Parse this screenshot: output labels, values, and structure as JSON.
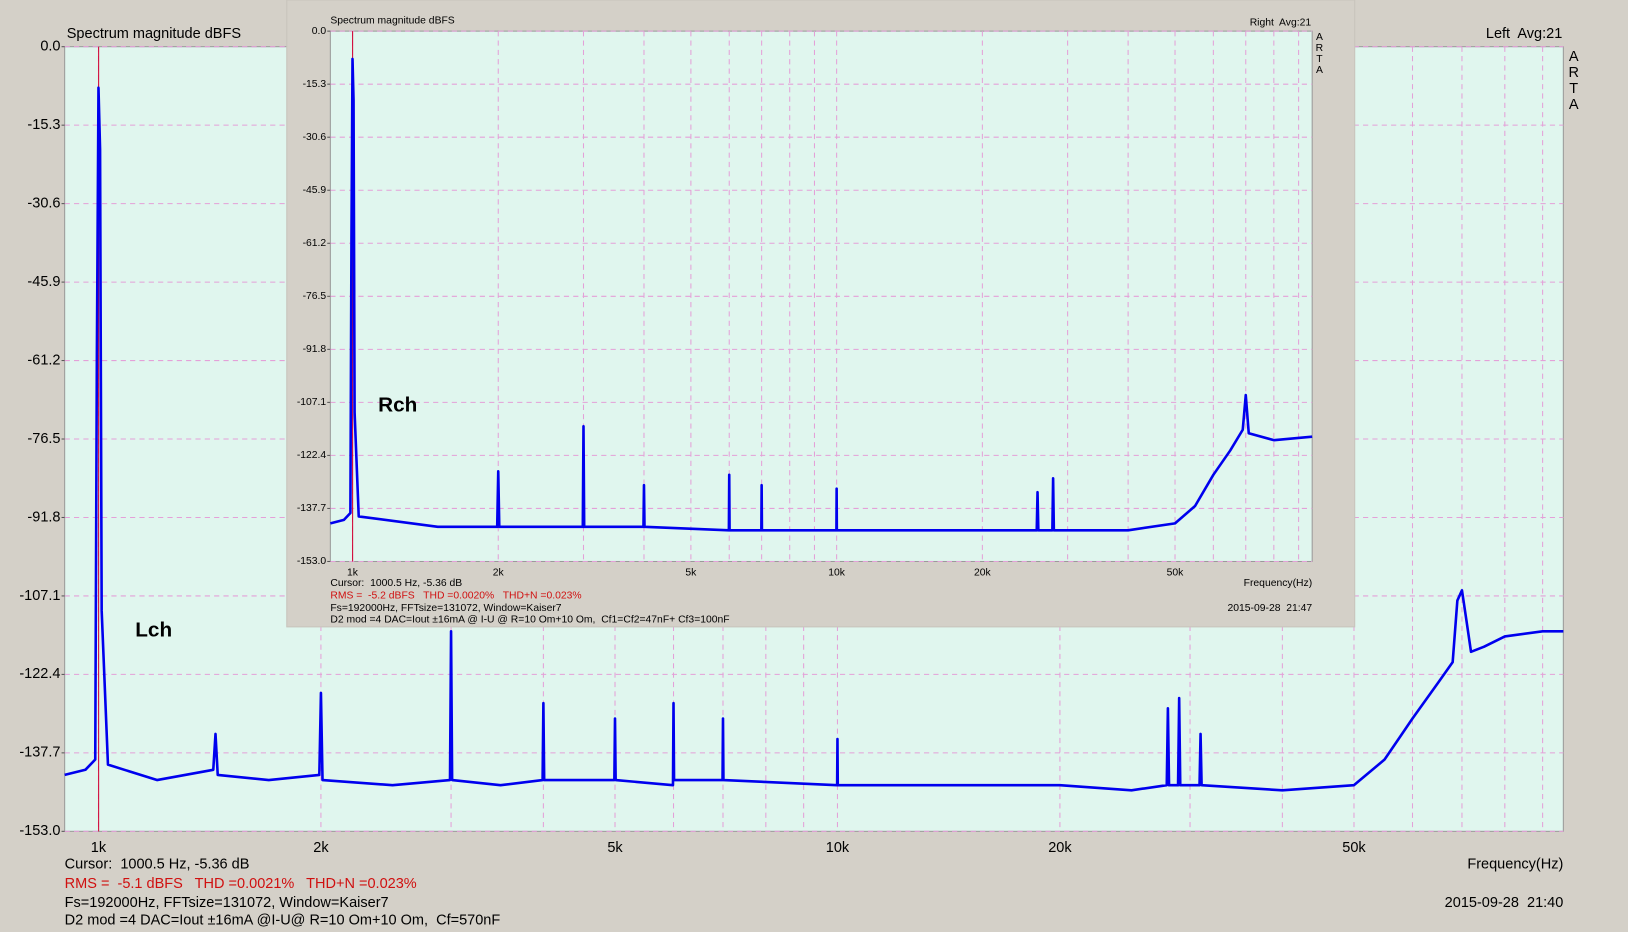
{
  "chart_data": [
    {
      "type": "line",
      "title": "Spectrum magnitude dBFS",
      "corner_label": "Left  Avg:21",
      "logo": "ARTA",
      "xlabel": "Frequency(Hz)",
      "cursor_text": "Cursor:  1000.5 Hz, -5.36 dB",
      "stats": "RMS =  -5.1 dBFS   THD =0.0021%   THD+N =0.023%",
      "fft": "Fs=192000Hz, FFTsize=131072, Window=Kaiser7",
      "setup": "D2 mod =4 DAC=Iout ±16mA @I-U@ R=10 Om+10 Om,  Cf=570nF",
      "date": "2015-09-28  21:40",
      "xscale": "log",
      "xlim": [
        900,
        96000
      ],
      "xticks": [
        {
          "value": 1000,
          "label": "1k"
        },
        {
          "value": 2000,
          "label": "2k"
        },
        {
          "value": 5000,
          "label": "5k"
        },
        {
          "value": 10000,
          "label": "10k"
        },
        {
          "value": 20000,
          "label": "20k"
        },
        {
          "value": 50000,
          "label": "50k"
        }
      ],
      "xminor": [
        3000,
        4000,
        6000,
        7000,
        8000,
        9000,
        30000,
        40000,
        60000,
        70000,
        80000,
        90000
      ],
      "ylim": [
        -153,
        0
      ],
      "yticks": [
        {
          "value": 0,
          "label": "0.0"
        },
        -15.3,
        -30.6,
        -45.9,
        -61.2,
        -76.5,
        -91.8,
        -107.1,
        -122.4,
        -137.7,
        {
          "value": -153,
          "label": "-153.0"
        }
      ],
      "grid": true,
      "cursor_x": 1000.5,
      "cursor_color": "#d00030",
      "x": [
        900,
        960,
        990,
        995,
        1000,
        1005,
        1010,
        1030,
        1200,
        1430,
        1440,
        1450,
        1700,
        1990,
        2000,
        2010,
        2500,
        2990,
        3000,
        3010,
        3500,
        3990,
        4000,
        4010,
        4990,
        5000,
        5010,
        5990,
        6000,
        6010,
        6990,
        7000,
        7010,
        9990,
        10000,
        10010,
        12000,
        15000,
        20000,
        25000,
        27900,
        28000,
        28100,
        28900,
        29000,
        29100,
        30900,
        31000,
        31100,
        40000,
        50000,
        55000,
        60000,
        65000,
        68000,
        69000,
        70000,
        71000,
        72000,
        75000,
        80000,
        90000,
        96000
      ],
      "series": [
        {
          "name": "Lch",
          "color": "#0000ee",
          "label_color": "#1010e0",
          "values": [
            -142,
            -141,
            -139,
            -60,
            -8,
            -20,
            -110,
            -140,
            -143,
            -141,
            -134,
            -142,
            -143,
            -142,
            -126,
            -143,
            -144,
            -143,
            -114,
            -143,
            -144,
            -143,
            -128,
            -143,
            -143,
            -131,
            -143,
            -144,
            -128,
            -143,
            -143,
            -131,
            -143,
            -144,
            -135,
            -144,
            -144,
            -144,
            -144,
            -145,
            -144,
            -129,
            -144,
            -144,
            -127,
            -144,
            -144,
            -134,
            -144,
            -145,
            -144,
            -139,
            -131,
            -124,
            -120,
            -108,
            -106,
            -112,
            -118,
            -117,
            -115,
            -114,
            -114
          ]
        }
      ]
    },
    {
      "type": "line",
      "title": "Spectrum magnitude dBFS",
      "corner_label": "Right  Avg:21",
      "logo": "ARTA",
      "xlabel": "Frequency(Hz)",
      "cursor_text": "Cursor:  1000.5 Hz, -5.36 dB",
      "stats": "RMS =  -5.2 dBFS   THD =0.0020%   THD+N =0.023%",
      "fft": "Fs=192000Hz, FFTsize=131072, Window=Kaiser7",
      "setup": "D2 mod =4 DAC=Iout ±16mA @ I-U @ R=10 Om+10 Om,  Cf1=Cf2=47nF+ Cf3=100nF",
      "date": "2015-09-28  21:47",
      "xscale": "log",
      "xlim": [
        900,
        96000
      ],
      "xticks": [
        {
          "value": 1000,
          "label": "1k"
        },
        {
          "value": 2000,
          "label": "2k"
        },
        {
          "value": 5000,
          "label": "5k"
        },
        {
          "value": 10000,
          "label": "10k"
        },
        {
          "value": 20000,
          "label": "20k"
        },
        {
          "value": 50000,
          "label": "50k"
        }
      ],
      "xminor": [
        3000,
        4000,
        6000,
        7000,
        8000,
        9000,
        30000,
        40000,
        60000,
        70000,
        80000,
        90000
      ],
      "ylim": [
        -153,
        0
      ],
      "yticks": [
        {
          "value": 0,
          "label": "0.0"
        },
        -15.3,
        -30.6,
        -45.9,
        -61.2,
        -76.5,
        -91.8,
        -107.1,
        -122.4,
        -137.7,
        {
          "value": -153,
          "label": "-153.0"
        }
      ],
      "grid": true,
      "cursor_x": 1000.5,
      "cursor_color": "#d00030",
      "x": [
        900,
        960,
        990,
        995,
        1000,
        1005,
        1010,
        1030,
        1500,
        1990,
        2000,
        2010,
        2990,
        3000,
        3010,
        3990,
        4000,
        4010,
        5990,
        6000,
        6010,
        6990,
        7000,
        7010,
        9990,
        10000,
        10010,
        12000,
        20000,
        25900,
        26000,
        26100,
        27900,
        28000,
        28100,
        40000,
        50000,
        55000,
        60000,
        65000,
        69000,
        70000,
        71000,
        80000,
        96000
      ],
      "series": [
        {
          "name": "Rch",
          "color": "#0000ee",
          "label_color": "#e01010",
          "values": [
            -142,
            -141,
            -139,
            -60,
            -8,
            -20,
            -110,
            -140,
            -143,
            -143,
            -127,
            -143,
            -143,
            -114,
            -143,
            -143,
            -131,
            -143,
            -144,
            -128,
            -144,
            -144,
            -131,
            -144,
            -144,
            -132,
            -144,
            -144,
            -144,
            -144,
            -133,
            -144,
            -144,
            -129,
            -144,
            -144,
            -142,
            -137,
            -128,
            -121,
            -115,
            -105,
            -116,
            -118,
            -117
          ]
        }
      ]
    }
  ]
}
